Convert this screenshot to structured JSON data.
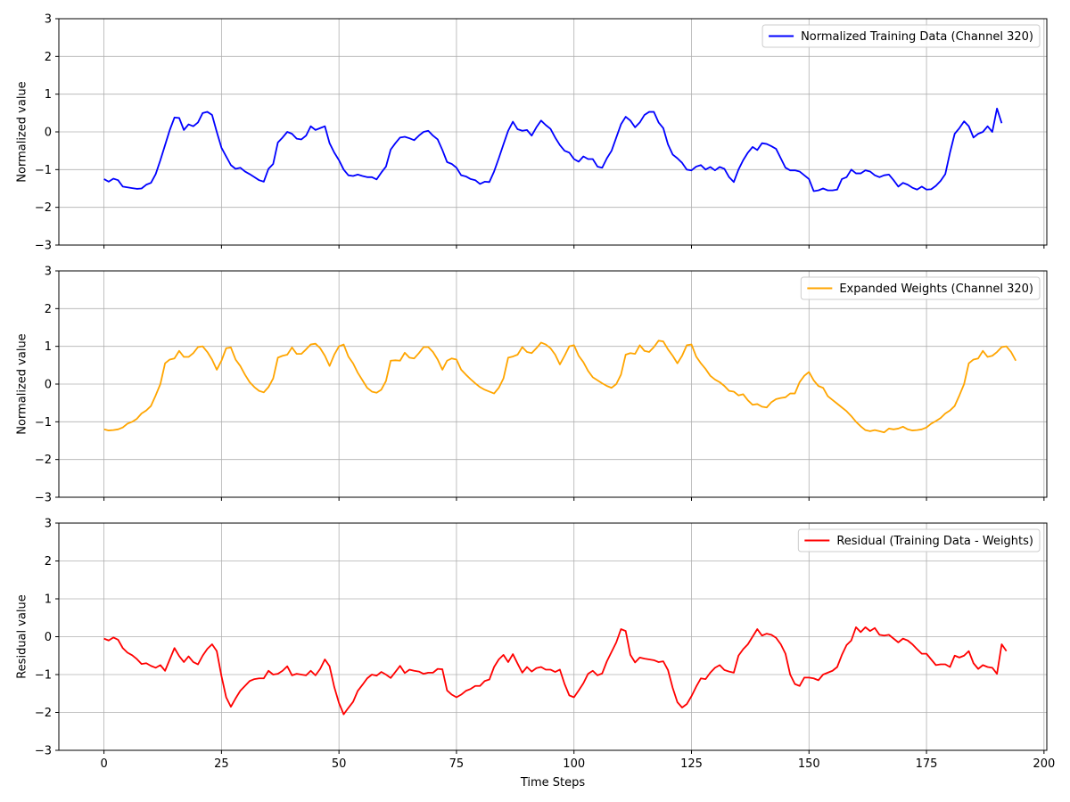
{
  "chart_data": {
    "type": "line",
    "x_tick_values": [
      0,
      25,
      50,
      75,
      100,
      125,
      150,
      175,
      200
    ],
    "y_tick_values": [
      -3,
      -2,
      -1,
      0,
      1,
      2,
      3
    ],
    "xlim": [
      -9.6,
      200.6
    ],
    "ylim": [
      -3,
      3
    ],
    "grid": true,
    "xlabel": "Time Steps",
    "panels": [
      {
        "ylabel": "Normalized value",
        "legend": "top-right",
        "series": {
          "name": "Normalized Training Data (Channel 320)",
          "color": "#0000ff",
          "values": [
            -1.25,
            -1.32,
            -1.24,
            -1.28,
            -1.45,
            -1.47,
            -1.49,
            -1.51,
            -1.5,
            -1.4,
            -1.35,
            -1.12,
            -0.75,
            -0.35,
            0.05,
            0.38,
            0.37,
            0.05,
            0.2,
            0.15,
            0.25,
            0.5,
            0.53,
            0.45,
            0.0,
            -0.42,
            -0.65,
            -0.88,
            -0.98,
            -0.95,
            -1.05,
            -1.12,
            -1.2,
            -1.28,
            -1.32,
            -0.98,
            -0.85,
            -0.28,
            -0.15,
            0.0,
            -0.05,
            -0.18,
            -0.2,
            -0.1,
            0.15,
            0.05,
            0.1,
            0.15,
            -0.3,
            -0.55,
            -0.75,
            -1.0,
            -1.15,
            -1.17,
            -1.13,
            -1.17,
            -1.2,
            -1.2,
            -1.26,
            -1.08,
            -0.92,
            -0.47,
            -0.3,
            -0.15,
            -0.13,
            -0.17,
            -0.22,
            -0.1,
            0.0,
            0.03,
            -0.1,
            -0.2,
            -0.48,
            -0.8,
            -0.85,
            -0.95,
            -1.15,
            -1.18,
            -1.25,
            -1.28,
            -1.38,
            -1.32,
            -1.33,
            -1.05,
            -0.7,
            -0.33,
            0.03,
            0.27,
            0.07,
            0.03,
            0.05,
            -0.1,
            0.12,
            0.3,
            0.18,
            0.08,
            -0.15,
            -0.35,
            -0.5,
            -0.55,
            -0.72,
            -0.79,
            -0.65,
            -0.72,
            -0.72,
            -0.92,
            -0.95,
            -0.7,
            -0.5,
            -0.15,
            0.2,
            0.4,
            0.3,
            0.12,
            0.25,
            0.45,
            0.53,
            0.53,
            0.25,
            0.1,
            -0.33,
            -0.6,
            -0.7,
            -0.82,
            -1.0,
            -1.02,
            -0.92,
            -0.88,
            -1.0,
            -0.93,
            -1.02,
            -0.93,
            -0.98,
            -1.2,
            -1.33,
            -1.0,
            -0.75,
            -0.55,
            -0.4,
            -0.48,
            -0.3,
            -0.32,
            -0.38,
            -0.45,
            -0.7,
            -0.95,
            -1.02,
            -1.02,
            -1.05,
            -1.15,
            -1.25,
            -1.57,
            -1.55,
            -1.5,
            -1.55,
            -1.55,
            -1.53,
            -1.25,
            -1.2,
            -1.0,
            -1.1,
            -1.1,
            -1.02,
            -1.05,
            -1.15,
            -1.2,
            -1.15,
            -1.13,
            -1.28,
            -1.45,
            -1.35,
            -1.4,
            -1.48,
            -1.53,
            -1.45,
            -1.53,
            -1.52,
            -1.43,
            -1.3,
            -1.12,
            -0.55,
            -0.05,
            0.1,
            0.28,
            0.15,
            -0.15,
            -0.05,
            0.0,
            0.15,
            0.0,
            0.62,
            0.23
          ]
        }
      },
      {
        "ylabel": "Normalized value",
        "legend": "top-right",
        "series": {
          "name": "Expanded Weights (Channel 320)",
          "color": "#ffa500",
          "values": [
            -1.2,
            -1.23,
            -1.22,
            -1.2,
            -1.15,
            -1.05,
            -1.0,
            -0.92,
            -0.78,
            -0.7,
            -0.58,
            -0.3,
            0.0,
            0.55,
            0.65,
            0.68,
            0.88,
            0.72,
            0.72,
            0.82,
            0.98,
            1.0,
            0.85,
            0.65,
            0.38,
            0.62,
            0.95,
            0.97,
            0.65,
            0.48,
            0.25,
            0.05,
            -0.08,
            -0.18,
            -0.22,
            -0.08,
            0.15,
            0.7,
            0.75,
            0.78,
            0.97,
            0.8,
            0.8,
            0.92,
            1.05,
            1.07,
            0.95,
            0.75,
            0.48,
            0.78,
            1.0,
            1.05,
            0.73,
            0.55,
            0.3,
            0.1,
            -0.1,
            -0.2,
            -0.23,
            -0.15,
            0.08,
            0.62,
            0.63,
            0.62,
            0.83,
            0.7,
            0.68,
            0.82,
            0.98,
            0.98,
            0.85,
            0.65,
            0.38,
            0.62,
            0.68,
            0.65,
            0.38,
            0.25,
            0.13,
            0.02,
            -0.08,
            -0.15,
            -0.2,
            -0.25,
            -0.1,
            0.15,
            0.7,
            0.73,
            0.78,
            0.98,
            0.85,
            0.82,
            0.95,
            1.1,
            1.05,
            0.95,
            0.78,
            0.52,
            0.75,
            1.0,
            1.03,
            0.75,
            0.58,
            0.35,
            0.18,
            0.1,
            0.02,
            -0.05,
            -0.1,
            0.0,
            0.25,
            0.78,
            0.82,
            0.8,
            1.03,
            0.88,
            0.85,
            0.98,
            1.15,
            1.13,
            0.92,
            0.75,
            0.55,
            0.75,
            1.03,
            1.05,
            0.73,
            0.55,
            0.4,
            0.22,
            0.12,
            0.05,
            -0.05,
            -0.18,
            -0.2,
            -0.3,
            -0.27,
            -0.43,
            -0.55,
            -0.53,
            -0.6,
            -0.62,
            -0.48,
            -0.4,
            -0.37,
            -0.35,
            -0.25,
            -0.25,
            0.05,
            0.22,
            0.32,
            0.1,
            -0.05,
            -0.1,
            -0.32,
            -0.42,
            -0.52,
            -0.62,
            -0.72,
            -0.85,
            -1.0,
            -1.12,
            -1.22,
            -1.25,
            -1.22,
            -1.25,
            -1.28,
            -1.18,
            -1.2,
            -1.18,
            -1.13,
            -1.2,
            -1.23,
            -1.22,
            -1.2,
            -1.15,
            -1.05,
            -0.98,
            -0.9,
            -0.78,
            -0.7,
            -0.58,
            -0.3,
            0.0,
            0.55,
            0.65,
            0.68,
            0.88,
            0.72,
            0.75,
            0.85,
            0.98,
            1.0,
            0.85,
            0.62
          ]
        }
      },
      {
        "ylabel": "Residual value",
        "legend": "top-right",
        "series": {
          "name": "Residual (Training Data - Weights)",
          "color": "#ff0000",
          "values": [
            -0.05,
            -0.1,
            -0.02,
            -0.08,
            -0.3,
            -0.42,
            -0.49,
            -0.59,
            -0.72,
            -0.7,
            -0.77,
            -0.82,
            -0.75,
            -0.9,
            -0.6,
            -0.3,
            -0.51,
            -0.67,
            -0.52,
            -0.67,
            -0.73,
            -0.5,
            -0.32,
            -0.2,
            -0.38,
            -1.04,
            -1.6,
            -1.85,
            -1.63,
            -1.43,
            -1.3,
            -1.17,
            -1.12,
            -1.1,
            -1.1,
            -0.9,
            -1.0,
            -0.98,
            -0.9,
            -0.78,
            -1.02,
            -0.98,
            -1.0,
            -1.02,
            -0.9,
            -1.02,
            -0.85,
            -0.6,
            -0.78,
            -1.33,
            -1.75,
            -2.05,
            -1.88,
            -1.72,
            -1.43,
            -1.27,
            -1.1,
            -1.0,
            -1.03,
            -0.93,
            -1.0,
            -1.09,
            -0.93,
            -0.77,
            -0.96,
            -0.87,
            -0.9,
            -0.92,
            -0.98,
            -0.95,
            -0.95,
            -0.85,
            -0.86,
            -1.42,
            -1.53,
            -1.6,
            -1.53,
            -1.43,
            -1.38,
            -1.3,
            -1.3,
            -1.17,
            -1.13,
            -0.8,
            -0.6,
            -0.48,
            -0.67,
            -0.46,
            -0.71,
            -0.95,
            -0.8,
            -0.92,
            -0.83,
            -0.8,
            -0.87,
            -0.87,
            -0.93,
            -0.87,
            -1.25,
            -1.55,
            -1.6,
            -1.42,
            -1.23,
            -0.98,
            -0.9,
            -1.02,
            -0.97,
            -0.65,
            -0.4,
            -0.15,
            0.2,
            0.15,
            -0.48,
            -0.68,
            -0.55,
            -0.58,
            -0.6,
            -0.62,
            -0.67,
            -0.65,
            -0.88,
            -1.35,
            -1.73,
            -1.87,
            -1.78,
            -1.57,
            -1.32,
            -1.1,
            -1.12,
            -0.95,
            -0.82,
            -0.75,
            -0.88,
            -0.92,
            -0.95,
            -0.5,
            -0.33,
            -0.2,
            0.0,
            0.2,
            0.03,
            0.08,
            0.05,
            -0.03,
            -0.2,
            -0.45,
            -1.0,
            -1.25,
            -1.3,
            -1.08,
            -1.08,
            -1.1,
            -1.15,
            -1.0,
            -0.95,
            -0.9,
            -0.8,
            -0.48,
            -0.22,
            -0.1,
            0.25,
            0.12,
            0.25,
            0.15,
            0.23,
            0.05,
            0.03,
            0.05,
            -0.05,
            -0.15,
            -0.05,
            -0.1,
            -0.2,
            -0.33,
            -0.45,
            -0.45,
            -0.6,
            -0.75,
            -0.73,
            -0.73,
            -0.8,
            -0.5,
            -0.55,
            -0.5,
            -0.38,
            -0.7,
            -0.85,
            -0.75,
            -0.8,
            -0.82,
            -0.98,
            -0.2,
            -0.38
          ]
        }
      }
    ]
  }
}
